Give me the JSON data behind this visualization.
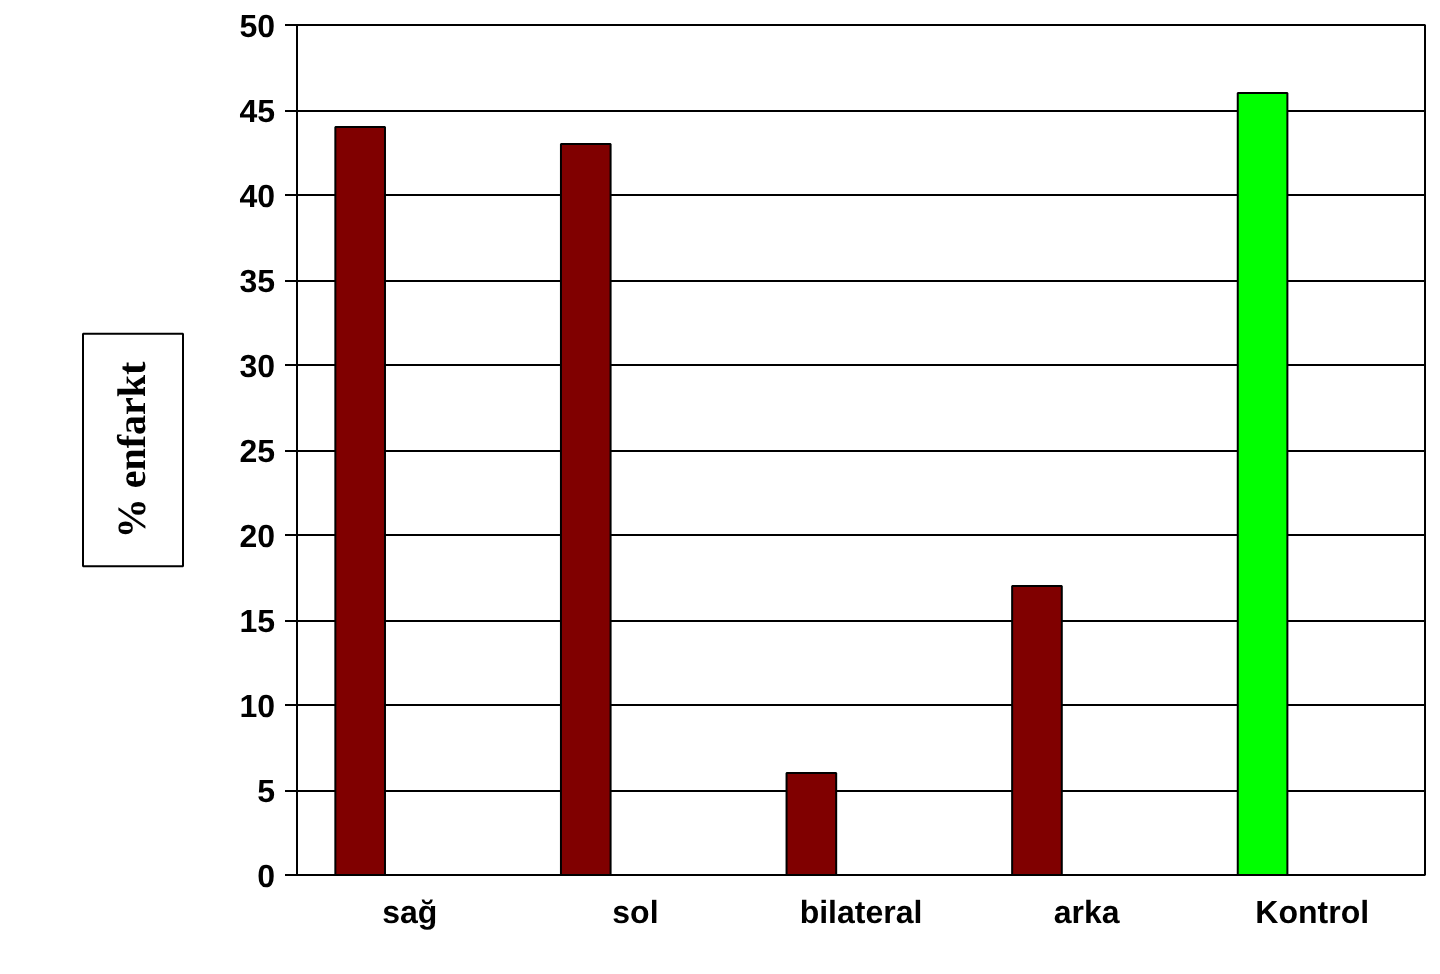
{
  "chart_data": {
    "type": "bar",
    "ylabel": "% enfarkt",
    "categories": [
      "sağ",
      "sol",
      "bilateral",
      "arka",
      "Kontrol"
    ],
    "values": [
      44,
      43,
      6,
      17,
      46
    ],
    "colors": [
      "#800000",
      "#800000",
      "#800000",
      "#800000",
      "#00ff00"
    ],
    "ylim": [
      0,
      50
    ],
    "yticks": [
      0,
      5,
      10,
      15,
      20,
      25,
      30,
      35,
      40,
      45,
      50
    ],
    "grid": "y"
  }
}
